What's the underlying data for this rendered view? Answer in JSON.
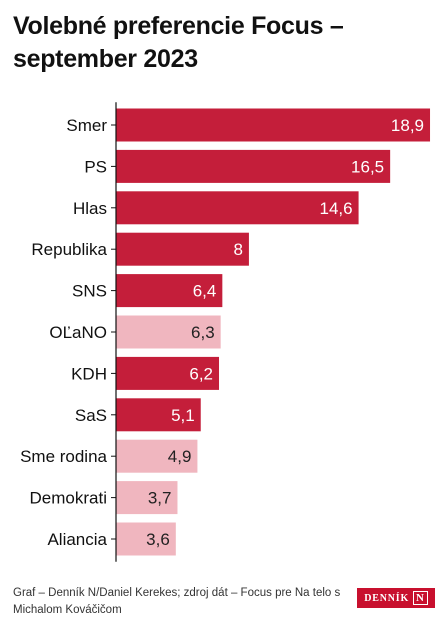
{
  "title": "Volebné preferencie Focus – september 2023",
  "footer": {
    "credit": "Graf – Denník N/Daniel Kerekes; zdroj dát – Focus pre Na telo s Michalom Kováčičom"
  },
  "logo": {
    "text": "DENNÍK",
    "box": "N"
  },
  "colors": {
    "dark": "#c41e3a",
    "light": "#f0b6bf",
    "axis": "#111111"
  },
  "chart_data": {
    "type": "bar",
    "orientation": "horizontal",
    "title": "Volebné preferencie Focus – september 2023",
    "xlim": [
      0,
      19.5
    ],
    "categories": [
      "Smer",
      "PS",
      "Hlas",
      "Republika",
      "SNS",
      "OĽaNO",
      "KDH",
      "SaS",
      "Sme rodina",
      "Demokrati",
      "Aliancia"
    ],
    "values": [
      18.9,
      16.5,
      14.6,
      8,
      6.4,
      6.3,
      6.2,
      5.1,
      4.9,
      3.7,
      3.6
    ],
    "value_labels": [
      "18,9",
      "16,5",
      "14,6",
      "8",
      "6,4",
      "6,3",
      "6,2",
      "5,1",
      "4,9",
      "3,7",
      "3,6"
    ],
    "highlight": [
      "dark",
      "dark",
      "dark",
      "dark",
      "dark",
      "light",
      "dark",
      "dark",
      "light",
      "light",
      "light"
    ]
  }
}
